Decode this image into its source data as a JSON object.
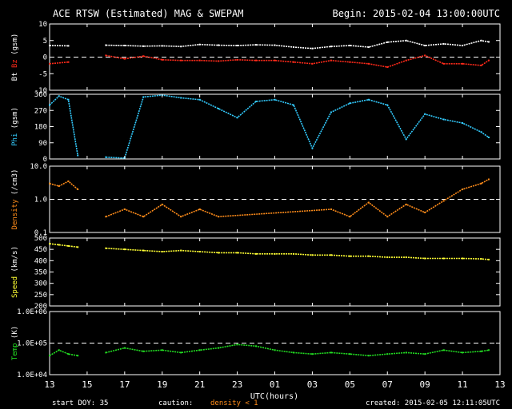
{
  "header": {
    "title": "ACE RTSW (Estimated) MAG & SWEPAM",
    "begin": "Begin: 2015-02-04 13:00:00UTC"
  },
  "footer": {
    "start_doy": "start DOY:  35",
    "caution": "caution:",
    "density_note": "density < 1",
    "created": "created: 2015-02-05 12:11:05UTC"
  },
  "colors": {
    "background": "#000000",
    "axes": "#ffffff",
    "bt": "#ffffff",
    "bz": "#ff2a1a",
    "phi": "#33ccff",
    "density": "#ff8c1a",
    "speed": "#ffff33",
    "temp": "#22dd22"
  },
  "chart_data": [
    {
      "type": "line",
      "ylabel_parts": [
        "Bt",
        "Bz",
        "(gsm)"
      ],
      "ylim": [
        -10,
        10
      ],
      "yticks": [
        "10",
        "5",
        "0",
        "-5",
        "-10"
      ],
      "reference_line": 0,
      "series": [
        {
          "name": "Bt",
          "x": [
            0,
            1,
            2,
            3,
            4,
            5,
            6,
            7,
            8,
            9,
            10,
            11,
            12,
            13,
            14,
            15,
            16,
            17,
            18,
            19,
            20,
            21,
            22,
            23,
            23.4
          ],
          "values": [
            3.5,
            3.4,
            null,
            3.6,
            3.5,
            3.3,
            3.4,
            3.2,
            3.8,
            3.6,
            3.5,
            3.7,
            3.6,
            3.0,
            2.6,
            3.2,
            3.5,
            3.0,
            4.5,
            5.0,
            3.5,
            4.0,
            3.5,
            5.0,
            4.6
          ]
        },
        {
          "name": "Bz",
          "x": [
            0,
            1,
            2,
            3,
            4,
            5,
            6,
            7,
            8,
            9,
            10,
            11,
            12,
            13,
            14,
            15,
            16,
            17,
            18,
            19,
            20,
            21,
            22,
            23,
            23.4
          ],
          "values": [
            -2.0,
            -1.5,
            null,
            0.5,
            -0.5,
            0.3,
            -0.8,
            -1.0,
            -1.0,
            -1.2,
            -0.8,
            -1.0,
            -1.0,
            -1.5,
            -2.0,
            -1.0,
            -1.5,
            -2.0,
            -3.0,
            -1.0,
            0.5,
            -2.0,
            -2.0,
            -2.5,
            -1.0
          ]
        }
      ]
    },
    {
      "type": "scatter",
      "ylabel_parts": [
        "Phi",
        "(gsm)"
      ],
      "ylim": [
        0,
        360
      ],
      "yticks": [
        "360",
        "270",
        "180",
        "90",
        "0"
      ],
      "series": [
        {
          "name": "Phi",
          "x": [
            0,
            0.5,
            1,
            1.5,
            2,
            3,
            4,
            5,
            6,
            7,
            8,
            9,
            10,
            11,
            12,
            13,
            14,
            15,
            16,
            17,
            18,
            19,
            20,
            21,
            22,
            23,
            23.4
          ],
          "values": [
            300,
            350,
            330,
            20,
            null,
            10,
            5,
            345,
            355,
            340,
            330,
            280,
            230,
            320,
            330,
            300,
            60,
            260,
            310,
            330,
            300,
            110,
            250,
            220,
            200,
            150,
            120
          ]
        }
      ]
    },
    {
      "type": "scatter",
      "scale": "log",
      "ylabel_parts": [
        "Density",
        "(/cm3)"
      ],
      "ylim": [
        0.1,
        10
      ],
      "yticks": [
        "10.0",
        "1.0",
        "0.1"
      ],
      "reference_line": 1,
      "series": [
        {
          "name": "Density",
          "x": [
            0,
            0.5,
            1,
            1.5,
            2,
            3,
            4,
            5,
            6,
            7,
            8,
            9,
            15,
            16,
            17,
            18,
            19,
            20,
            21,
            22,
            23,
            23.4
          ],
          "values": [
            3.0,
            2.5,
            3.5,
            2.0,
            null,
            0.3,
            0.5,
            0.3,
            0.7,
            0.3,
            0.5,
            0.3,
            0.5,
            0.3,
            0.8,
            0.3,
            0.7,
            0.4,
            0.9,
            2.0,
            3.0,
            4.0
          ]
        }
      ]
    },
    {
      "type": "line",
      "ylabel_parts": [
        "Speed",
        "(km/s)"
      ],
      "ylim": [
        200,
        500
      ],
      "yticks": [
        "500",
        "450",
        "400",
        "350",
        "300",
        "250",
        "200"
      ],
      "series": [
        {
          "name": "Speed",
          "x": [
            0,
            0.5,
            1,
            1.5,
            2,
            3,
            4,
            5,
            6,
            7,
            8,
            9,
            10,
            11,
            12,
            13,
            14,
            15,
            16,
            17,
            18,
            19,
            20,
            21,
            22,
            23,
            23.4
          ],
          "values": [
            475,
            470,
            465,
            460,
            null,
            455,
            450,
            445,
            440,
            445,
            440,
            435,
            435,
            430,
            430,
            430,
            425,
            425,
            420,
            420,
            415,
            415,
            410,
            410,
            410,
            408,
            405
          ]
        }
      ]
    },
    {
      "type": "scatter",
      "scale": "log",
      "ylabel_parts": [
        "Temp",
        "(K)"
      ],
      "ylim": [
        10000,
        1000000
      ],
      "yticks": [
        "1.0E+06",
        "1.0E+05",
        "1.0E+04"
      ],
      "reference_line": 100000,
      "series": [
        {
          "name": "Temp",
          "x": [
            0,
            0.5,
            1,
            1.5,
            2,
            3,
            4,
            5,
            6,
            7,
            8,
            9,
            10,
            11,
            12,
            13,
            14,
            15,
            16,
            17,
            18,
            19,
            20,
            21,
            22,
            23,
            23.4
          ],
          "values": [
            40000,
            60000,
            45000,
            40000,
            null,
            50000,
            70000,
            55000,
            60000,
            50000,
            60000,
            70000,
            90000,
            80000,
            60000,
            50000,
            45000,
            50000,
            45000,
            40000,
            45000,
            50000,
            45000,
            60000,
            50000,
            55000,
            60000
          ]
        }
      ]
    }
  ],
  "x_axis": {
    "label": "UTC(hours)",
    "range": [
      0,
      24
    ],
    "ticks": [
      "13",
      "15",
      "17",
      "19",
      "21",
      "23",
      "01",
      "03",
      "05",
      "07",
      "09",
      "11",
      "13"
    ]
  }
}
